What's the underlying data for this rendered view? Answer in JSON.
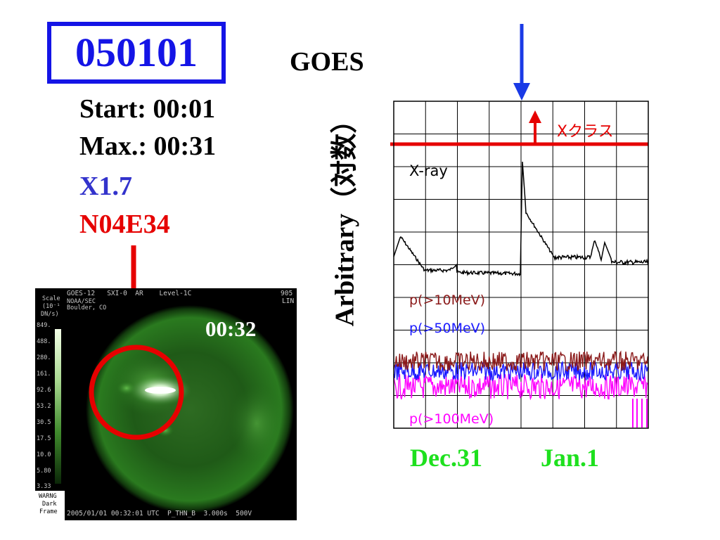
{
  "header": {
    "event_id": "050101",
    "instrument": "GOES"
  },
  "event_info": {
    "start": "Start: 00:01",
    "max": "Max.: 00:31",
    "class": "X1.7",
    "location": "N04E34"
  },
  "sxi_image": {
    "time_overlay": "00:32",
    "header_left": "GOES-12   SXI-0  AR    Level-1C",
    "header_right": "905",
    "header_right2": "LIN",
    "org_line1": "NOAA/SEC",
    "org_line2": "Boulder, CO",
    "scale_title1": "Scale",
    "scale_title2": "(10⁻¹",
    "scale_title3": "DN/s)",
    "scale_values": [
      "849.",
      "488.",
      "280.",
      "161.",
      "92.6",
      "53.2",
      "30.5",
      "17.5",
      "10.0",
      "5.80",
      "3.33"
    ],
    "footer_left1": "WARNG",
    "footer_left2": "Dark",
    "footer_left3": "Frame",
    "footer_info": "2005/01/01 00:32:01 UTC  P_THN_B  3.000s  500V"
  },
  "goes_plot": {
    "y_axis_label": "Arbitrary（対数）",
    "xclass_label": "Xクラス",
    "series_labels": {
      "xray": "X-ray",
      "p10": "p(>10MeV)",
      "p50": "p(>50MeV)",
      "p100": "p(>100MeV)"
    },
    "x_tick_labels": [
      "Dec.31",
      "Jan.1"
    ],
    "colors": {
      "xray": "#000000",
      "p10": "#8b1a1a",
      "p50": "#1a1aff",
      "p100": "#ff00ff",
      "xclass": "#e60000",
      "marker": "#1a3ae6",
      "dates": "#1ee01e"
    }
  }
}
